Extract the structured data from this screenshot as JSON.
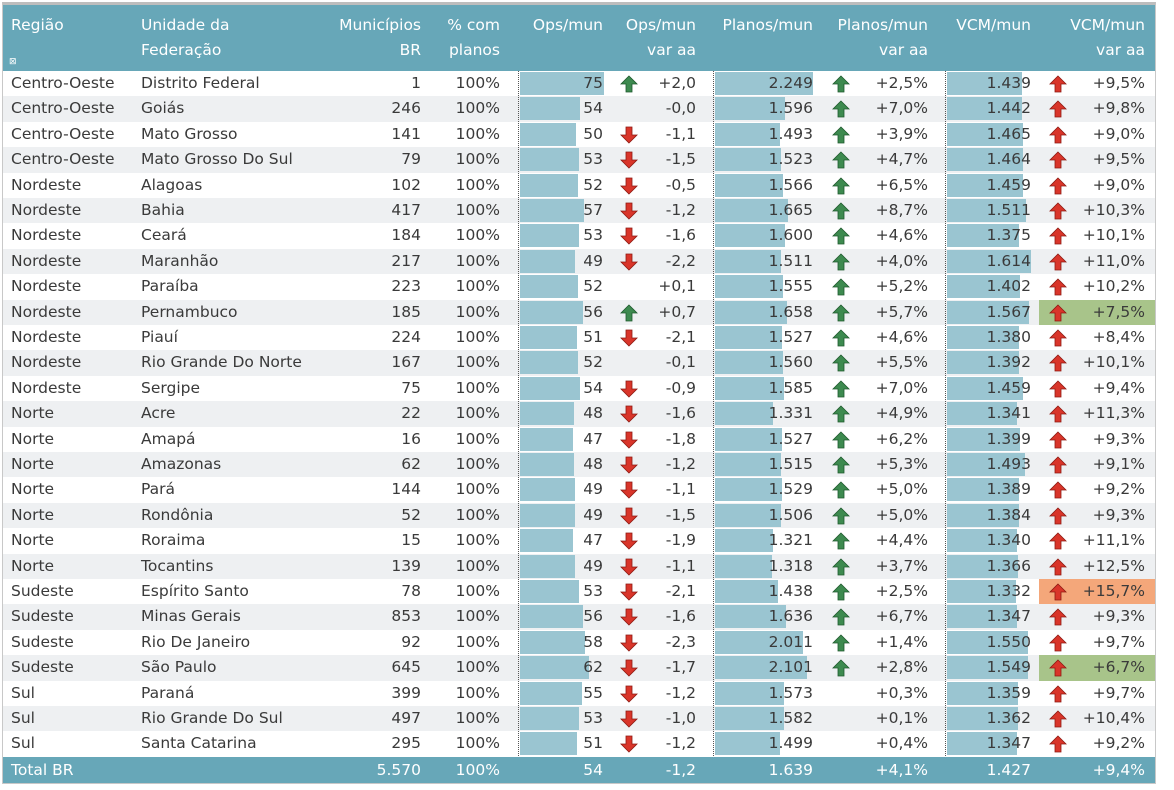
{
  "header": {
    "regiao": "Região",
    "uf_1": "Unidade da",
    "uf_2": "Federação",
    "mun_1": "Municípios",
    "mun_2": "BR",
    "pct_1": "% com",
    "pct_2": "planos",
    "ops": "Ops/mun",
    "ops_var_1": "Ops/mun",
    "ops_var_2": "var aa",
    "planos": "Planos/mun",
    "planos_var_1": "Planos/mun",
    "planos_var_2": "var aa",
    "vcm": "VCM/mun",
    "vcm_var_1": "VCM/mun",
    "vcm_var_2": "var aa",
    "filter_icon": "x-box-icon"
  },
  "colors": {
    "header": "#67a7b8",
    "bar": "#9ac5d1",
    "up_green": "#3d8a4f",
    "down_red": "#d9352a",
    "highlight_green": "#a8c48a",
    "highlight_orange": "#f4a77a"
  },
  "rows": [
    {
      "regiao": "Centro-Oeste",
      "uf": "Distrito Federal",
      "mun": "1",
      "pct": "100%",
      "ops": 75,
      "ops_label": "75",
      "ops_arrow": "up-green",
      "ops_var": "+2,0",
      "planos": 2249,
      "planos_label": "2.249",
      "planos_arrow": "up-green",
      "planos_var": "+2,5%",
      "vcm": 1439,
      "vcm_label": "1.439",
      "vcm_arrow": "up-red",
      "vcm_var": "+9,5%",
      "vcm_highlight": ""
    },
    {
      "regiao": "Centro-Oeste",
      "uf": "Goiás",
      "mun": "246",
      "pct": "100%",
      "ops": 54,
      "ops_label": "54",
      "ops_arrow": "",
      "ops_var": "-0,0",
      "planos": 1596,
      "planos_label": "1.596",
      "planos_arrow": "up-green",
      "planos_var": "+7,0%",
      "vcm": 1442,
      "vcm_label": "1.442",
      "vcm_arrow": "up-red",
      "vcm_var": "+9,8%",
      "vcm_highlight": ""
    },
    {
      "regiao": "Centro-Oeste",
      "uf": "Mato Grosso",
      "mun": "141",
      "pct": "100%",
      "ops": 50,
      "ops_label": "50",
      "ops_arrow": "down-red",
      "ops_var": "-1,1",
      "planos": 1493,
      "planos_label": "1.493",
      "planos_arrow": "up-green",
      "planos_var": "+3,9%",
      "vcm": 1465,
      "vcm_label": "1.465",
      "vcm_arrow": "up-red",
      "vcm_var": "+9,0%",
      "vcm_highlight": ""
    },
    {
      "regiao": "Centro-Oeste",
      "uf": "Mato Grosso Do Sul",
      "mun": "79",
      "pct": "100%",
      "ops": 53,
      "ops_label": "53",
      "ops_arrow": "down-red",
      "ops_var": "-1,5",
      "planos": 1523,
      "planos_label": "1.523",
      "planos_arrow": "up-green",
      "planos_var": "+4,7%",
      "vcm": 1464,
      "vcm_label": "1.464",
      "vcm_arrow": "up-red",
      "vcm_var": "+9,5%",
      "vcm_highlight": ""
    },
    {
      "regiao": "Nordeste",
      "uf": "Alagoas",
      "mun": "102",
      "pct": "100%",
      "ops": 52,
      "ops_label": "52",
      "ops_arrow": "down-red",
      "ops_var": "-0,5",
      "planos": 1566,
      "planos_label": "1.566",
      "planos_arrow": "up-green",
      "planos_var": "+6,5%",
      "vcm": 1459,
      "vcm_label": "1.459",
      "vcm_arrow": "up-red",
      "vcm_var": "+9,0%",
      "vcm_highlight": ""
    },
    {
      "regiao": "Nordeste",
      "uf": "Bahia",
      "mun": "417",
      "pct": "100%",
      "ops": 57,
      "ops_label": "57",
      "ops_arrow": "down-red",
      "ops_var": "-1,2",
      "planos": 1665,
      "planos_label": "1.665",
      "planos_arrow": "up-green",
      "planos_var": "+8,7%",
      "vcm": 1511,
      "vcm_label": "1.511",
      "vcm_arrow": "up-red",
      "vcm_var": "+10,3%",
      "vcm_highlight": ""
    },
    {
      "regiao": "Nordeste",
      "uf": "Ceará",
      "mun": "184",
      "pct": "100%",
      "ops": 53,
      "ops_label": "53",
      "ops_arrow": "down-red",
      "ops_var": "-1,6",
      "planos": 1600,
      "planos_label": "1.600",
      "planos_arrow": "up-green",
      "planos_var": "+4,6%",
      "vcm": 1375,
      "vcm_label": "1.375",
      "vcm_arrow": "up-red",
      "vcm_var": "+10,1%",
      "vcm_highlight": ""
    },
    {
      "regiao": "Nordeste",
      "uf": "Maranhão",
      "mun": "217",
      "pct": "100%",
      "ops": 49,
      "ops_label": "49",
      "ops_arrow": "down-red",
      "ops_var": "-2,2",
      "planos": 1511,
      "planos_label": "1.511",
      "planos_arrow": "up-green",
      "planos_var": "+4,0%",
      "vcm": 1614,
      "vcm_label": "1.614",
      "vcm_arrow": "up-red",
      "vcm_var": "+11,0%",
      "vcm_highlight": ""
    },
    {
      "regiao": "Nordeste",
      "uf": "Paraíba",
      "mun": "223",
      "pct": "100%",
      "ops": 52,
      "ops_label": "52",
      "ops_arrow": "",
      "ops_var": "+0,1",
      "planos": 1555,
      "planos_label": "1.555",
      "planos_arrow": "up-green",
      "planos_var": "+5,2%",
      "vcm": 1402,
      "vcm_label": "1.402",
      "vcm_arrow": "up-red",
      "vcm_var": "+10,2%",
      "vcm_highlight": ""
    },
    {
      "regiao": "Nordeste",
      "uf": "Pernambuco",
      "mun": "185",
      "pct": "100%",
      "ops": 56,
      "ops_label": "56",
      "ops_arrow": "up-green",
      "ops_var": "+0,7",
      "planos": 1658,
      "planos_label": "1.658",
      "planos_arrow": "up-green",
      "planos_var": "+5,7%",
      "vcm": 1567,
      "vcm_label": "1.567",
      "vcm_arrow": "up-red",
      "vcm_var": "+7,5%",
      "vcm_highlight": "green"
    },
    {
      "regiao": "Nordeste",
      "uf": "Piauí",
      "mun": "224",
      "pct": "100%",
      "ops": 51,
      "ops_label": "51",
      "ops_arrow": "down-red",
      "ops_var": "-2,1",
      "planos": 1527,
      "planos_label": "1.527",
      "planos_arrow": "up-green",
      "planos_var": "+4,6%",
      "vcm": 1380,
      "vcm_label": "1.380",
      "vcm_arrow": "up-red",
      "vcm_var": "+8,4%",
      "vcm_highlight": ""
    },
    {
      "regiao": "Nordeste",
      "uf": "Rio Grande Do Norte",
      "mun": "167",
      "pct": "100%",
      "ops": 52,
      "ops_label": "52",
      "ops_arrow": "",
      "ops_var": "-0,1",
      "planos": 1560,
      "planos_label": "1.560",
      "planos_arrow": "up-green",
      "planos_var": "+5,5%",
      "vcm": 1392,
      "vcm_label": "1.392",
      "vcm_arrow": "up-red",
      "vcm_var": "+10,1%",
      "vcm_highlight": ""
    },
    {
      "regiao": "Nordeste",
      "uf": "Sergipe",
      "mun": "75",
      "pct": "100%",
      "ops": 54,
      "ops_label": "54",
      "ops_arrow": "down-red",
      "ops_var": "-0,9",
      "planos": 1585,
      "planos_label": "1.585",
      "planos_arrow": "up-green",
      "planos_var": "+7,0%",
      "vcm": 1459,
      "vcm_label": "1.459",
      "vcm_arrow": "up-red",
      "vcm_var": "+9,4%",
      "vcm_highlight": ""
    },
    {
      "regiao": "Norte",
      "uf": "Acre",
      "mun": "22",
      "pct": "100%",
      "ops": 48,
      "ops_label": "48",
      "ops_arrow": "down-red",
      "ops_var": "-1,6",
      "planos": 1331,
      "planos_label": "1.331",
      "planos_arrow": "up-green",
      "planos_var": "+4,9%",
      "vcm": 1341,
      "vcm_label": "1.341",
      "vcm_arrow": "up-red",
      "vcm_var": "+11,3%",
      "vcm_highlight": ""
    },
    {
      "regiao": "Norte",
      "uf": "Amapá",
      "mun": "16",
      "pct": "100%",
      "ops": 47,
      "ops_label": "47",
      "ops_arrow": "down-red",
      "ops_var": "-1,8",
      "planos": 1527,
      "planos_label": "1.527",
      "planos_arrow": "up-green",
      "planos_var": "+6,2%",
      "vcm": 1399,
      "vcm_label": "1.399",
      "vcm_arrow": "up-red",
      "vcm_var": "+9,3%",
      "vcm_highlight": ""
    },
    {
      "regiao": "Norte",
      "uf": "Amazonas",
      "mun": "62",
      "pct": "100%",
      "ops": 48,
      "ops_label": "48",
      "ops_arrow": "down-red",
      "ops_var": "-1,2",
      "planos": 1515,
      "planos_label": "1.515",
      "planos_arrow": "up-green",
      "planos_var": "+5,3%",
      "vcm": 1493,
      "vcm_label": "1.493",
      "vcm_arrow": "up-red",
      "vcm_var": "+9,1%",
      "vcm_highlight": ""
    },
    {
      "regiao": "Norte",
      "uf": "Pará",
      "mun": "144",
      "pct": "100%",
      "ops": 49,
      "ops_label": "49",
      "ops_arrow": "down-red",
      "ops_var": "-1,1",
      "planos": 1529,
      "planos_label": "1.529",
      "planos_arrow": "up-green",
      "planos_var": "+5,0%",
      "vcm": 1389,
      "vcm_label": "1.389",
      "vcm_arrow": "up-red",
      "vcm_var": "+9,2%",
      "vcm_highlight": ""
    },
    {
      "regiao": "Norte",
      "uf": "Rondônia",
      "mun": "52",
      "pct": "100%",
      "ops": 49,
      "ops_label": "49",
      "ops_arrow": "down-red",
      "ops_var": "-1,5",
      "planos": 1506,
      "planos_label": "1.506",
      "planos_arrow": "up-green",
      "planos_var": "+5,0%",
      "vcm": 1384,
      "vcm_label": "1.384",
      "vcm_arrow": "up-red",
      "vcm_var": "+9,3%",
      "vcm_highlight": ""
    },
    {
      "regiao": "Norte",
      "uf": "Roraima",
      "mun": "15",
      "pct": "100%",
      "ops": 47,
      "ops_label": "47",
      "ops_arrow": "down-red",
      "ops_var": "-1,9",
      "planos": 1321,
      "planos_label": "1.321",
      "planos_arrow": "up-green",
      "planos_var": "+4,4%",
      "vcm": 1340,
      "vcm_label": "1.340",
      "vcm_arrow": "up-red",
      "vcm_var": "+11,1%",
      "vcm_highlight": ""
    },
    {
      "regiao": "Norte",
      "uf": "Tocantins",
      "mun": "139",
      "pct": "100%",
      "ops": 49,
      "ops_label": "49",
      "ops_arrow": "down-red",
      "ops_var": "-1,1",
      "planos": 1318,
      "planos_label": "1.318",
      "planos_arrow": "up-green",
      "planos_var": "+3,7%",
      "vcm": 1366,
      "vcm_label": "1.366",
      "vcm_arrow": "up-red",
      "vcm_var": "+12,5%",
      "vcm_highlight": ""
    },
    {
      "regiao": "Sudeste",
      "uf": "Espírito Santo",
      "mun": "78",
      "pct": "100%",
      "ops": 53,
      "ops_label": "53",
      "ops_arrow": "down-red",
      "ops_var": "-2,1",
      "planos": 1438,
      "planos_label": "1.438",
      "planos_arrow": "up-green",
      "planos_var": "+2,5%",
      "vcm": 1332,
      "vcm_label": "1.332",
      "vcm_arrow": "up-red",
      "vcm_var": "+15,7%",
      "vcm_highlight": "orange"
    },
    {
      "regiao": "Sudeste",
      "uf": "Minas Gerais",
      "mun": "853",
      "pct": "100%",
      "ops": 56,
      "ops_label": "56",
      "ops_arrow": "down-red",
      "ops_var": "-1,6",
      "planos": 1636,
      "planos_label": "1.636",
      "planos_arrow": "up-green",
      "planos_var": "+6,7%",
      "vcm": 1347,
      "vcm_label": "1.347",
      "vcm_arrow": "up-red",
      "vcm_var": "+9,3%",
      "vcm_highlight": ""
    },
    {
      "regiao": "Sudeste",
      "uf": "Rio De Janeiro",
      "mun": "92",
      "pct": "100%",
      "ops": 58,
      "ops_label": "58",
      "ops_arrow": "down-red",
      "ops_var": "-2,3",
      "planos": 2011,
      "planos_label": "2.011",
      "planos_arrow": "up-green",
      "planos_var": "+1,4%",
      "vcm": 1550,
      "vcm_label": "1.550",
      "vcm_arrow": "up-red",
      "vcm_var": "+9,7%",
      "vcm_highlight": ""
    },
    {
      "regiao": "Sudeste",
      "uf": "São Paulo",
      "mun": "645",
      "pct": "100%",
      "ops": 62,
      "ops_label": "62",
      "ops_arrow": "down-red",
      "ops_var": "-1,7",
      "planos": 2101,
      "planos_label": "2.101",
      "planos_arrow": "up-green",
      "planos_var": "+2,8%",
      "vcm": 1549,
      "vcm_label": "1.549",
      "vcm_arrow": "up-red",
      "vcm_var": "+6,7%",
      "vcm_highlight": "green"
    },
    {
      "regiao": "Sul",
      "uf": "Paraná",
      "mun": "399",
      "pct": "100%",
      "ops": 55,
      "ops_label": "55",
      "ops_arrow": "down-red",
      "ops_var": "-1,2",
      "planos": 1573,
      "planos_label": "1.573",
      "planos_arrow": "",
      "planos_var": "+0,3%",
      "vcm": 1359,
      "vcm_label": "1.359",
      "vcm_arrow": "up-red",
      "vcm_var": "+9,7%",
      "vcm_highlight": ""
    },
    {
      "regiao": "Sul",
      "uf": "Rio Grande Do Sul",
      "mun": "497",
      "pct": "100%",
      "ops": 53,
      "ops_label": "53",
      "ops_arrow": "down-red",
      "ops_var": "-1,0",
      "planos": 1582,
      "planos_label": "1.582",
      "planos_arrow": "",
      "planos_var": "+0,1%",
      "vcm": 1362,
      "vcm_label": "1.362",
      "vcm_arrow": "up-red",
      "vcm_var": "+10,4%",
      "vcm_highlight": ""
    },
    {
      "regiao": "Sul",
      "uf": "Santa Catarina",
      "mun": "295",
      "pct": "100%",
      "ops": 51,
      "ops_label": "51",
      "ops_arrow": "down-red",
      "ops_var": "-1,2",
      "planos": 1499,
      "planos_label": "1.499",
      "planos_arrow": "",
      "planos_var": "+0,4%",
      "vcm": 1347,
      "vcm_label": "1.347",
      "vcm_arrow": "up-red",
      "vcm_var": "+9,2%",
      "vcm_highlight": ""
    }
  ],
  "total": {
    "label": "Total BR",
    "mun": "5.570",
    "pct": "100%",
    "ops": "54",
    "ops_var": "-1,2",
    "planos": "1.639",
    "planos_var": "+4,1%",
    "vcm": "1.427",
    "vcm_var": "+9,4%"
  }
}
